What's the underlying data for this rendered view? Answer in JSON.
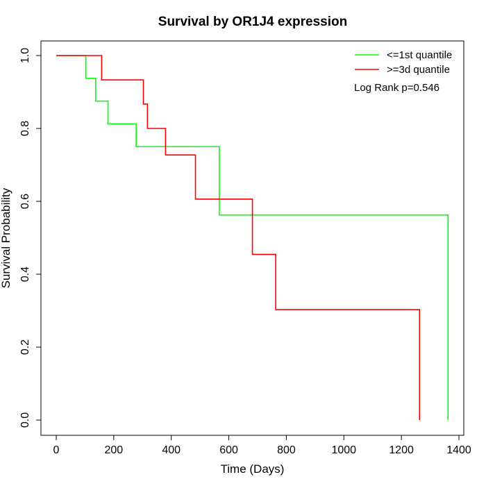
{
  "chart_data": {
    "type": "line",
    "title": "Survival by OR1J4 expression",
    "xlabel": "Time (Days)",
    "ylabel": "Survival Probability",
    "xlim": [
      0,
      1400
    ],
    "ylim": [
      0,
      1
    ],
    "x_ticks": [
      "0",
      "200",
      "400",
      "600",
      "800",
      "1000",
      "1200",
      "1400"
    ],
    "y_ticks": [
      "0.0",
      "0.2",
      "0.4",
      "0.6",
      "0.8",
      "1.0"
    ],
    "grid": false,
    "legend_position": "top-right",
    "annotation": "Log Rank p=0.546",
    "series": [
      {
        "name": "<=1st quantile",
        "color": "#00ff00",
        "step": true,
        "x": [
          0,
          103,
          137,
          180,
          278,
          567,
          1362,
          1362
        ],
        "y": [
          1.0,
          0.9375,
          0.875,
          0.8125,
          0.75,
          0.5625,
          0.5625,
          0.0
        ]
      },
      {
        "name": ">=3d quantile",
        "color": "#ff0000",
        "step": true,
        "x": [
          0,
          158,
          303,
          317,
          380,
          484,
          682,
          763,
          1263,
          1263
        ],
        "y": [
          1.0,
          0.9333,
          0.8667,
          0.8,
          0.7273,
          0.6061,
          0.4545,
          0.303,
          0.303,
          0.0
        ]
      }
    ]
  }
}
